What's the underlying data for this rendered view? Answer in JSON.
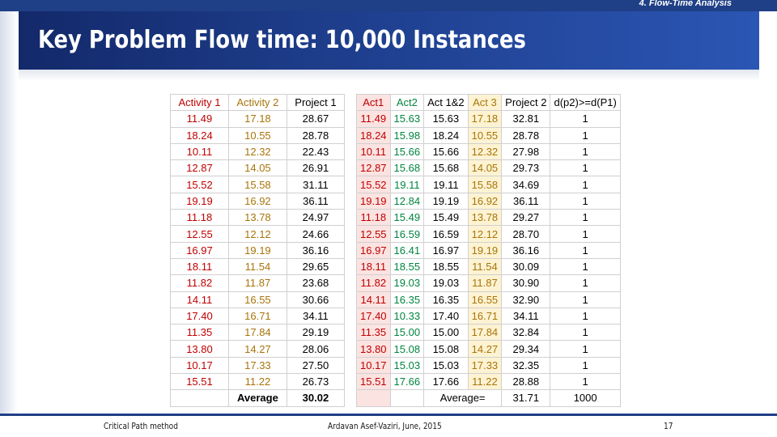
{
  "section_label": "4. Flow-Time Analysis",
  "title": "Key Problem Flow time: 10,000 Instances",
  "table1": {
    "headers": [
      "Activity 1",
      "Activity 2",
      "Project 1"
    ],
    "rows": [
      [
        "11.49",
        "17.18",
        "28.67"
      ],
      [
        "18.24",
        "10.55",
        "28.78"
      ],
      [
        "10.11",
        "12.32",
        "22.43"
      ],
      [
        "12.87",
        "14.05",
        "26.91"
      ],
      [
        "15.52",
        "15.58",
        "31.11"
      ],
      [
        "19.19",
        "16.92",
        "36.11"
      ],
      [
        "11.18",
        "13.78",
        "24.97"
      ],
      [
        "12.55",
        "12.12",
        "24.66"
      ],
      [
        "16.97",
        "19.19",
        "36.16"
      ],
      [
        "18.11",
        "11.54",
        "29.65"
      ],
      [
        "11.82",
        "11.87",
        "23.68"
      ],
      [
        "14.11",
        "16.55",
        "30.66"
      ],
      [
        "17.40",
        "16.71",
        "34.11"
      ],
      [
        "11.35",
        "17.84",
        "29.19"
      ],
      [
        "13.80",
        "14.27",
        "28.06"
      ],
      [
        "10.17",
        "17.33",
        "27.50"
      ],
      [
        "15.51",
        "11.22",
        "26.73"
      ]
    ],
    "average_label": "Average",
    "average_value": "30.02"
  },
  "table2": {
    "headers": [
      "Act1",
      "Act2",
      "Act 1&2",
      "Act 3",
      "Project 2",
      "d(p2)>=d(P1)"
    ],
    "rows": [
      [
        "11.49",
        "15.63",
        "15.63",
        "17.18",
        "32.81",
        "1"
      ],
      [
        "18.24",
        "15.98",
        "18.24",
        "10.55",
        "28.78",
        "1"
      ],
      [
        "10.11",
        "15.66",
        "15.66",
        "12.32",
        "27.98",
        "1"
      ],
      [
        "12.87",
        "15.68",
        "15.68",
        "14.05",
        "29.73",
        "1"
      ],
      [
        "15.52",
        "19.11",
        "19.11",
        "15.58",
        "34.69",
        "1"
      ],
      [
        "19.19",
        "12.84",
        "19.19",
        "16.92",
        "36.11",
        "1"
      ],
      [
        "11.18",
        "15.49",
        "15.49",
        "13.78",
        "29.27",
        "1"
      ],
      [
        "12.55",
        "16.59",
        "16.59",
        "12.12",
        "28.70",
        "1"
      ],
      [
        "16.97",
        "16.41",
        "16.97",
        "19.19",
        "36.16",
        "1"
      ],
      [
        "18.11",
        "18.55",
        "18.55",
        "11.54",
        "30.09",
        "1"
      ],
      [
        "11.82",
        "19.03",
        "19.03",
        "11.87",
        "30.90",
        "1"
      ],
      [
        "14.11",
        "16.35",
        "16.35",
        "16.55",
        "32.90",
        "1"
      ],
      [
        "17.40",
        "10.33",
        "17.40",
        "16.71",
        "34.11",
        "1"
      ],
      [
        "11.35",
        "15.00",
        "15.00",
        "17.84",
        "32.84",
        "1"
      ],
      [
        "13.80",
        "15.08",
        "15.08",
        "14.27",
        "29.34",
        "1"
      ],
      [
        "10.17",
        "15.03",
        "15.03",
        "17.33",
        "32.35",
        "1"
      ],
      [
        "15.51",
        "17.66",
        "17.66",
        "11.22",
        "28.88",
        "1"
      ]
    ],
    "average_label": "Average=",
    "average_value": "31.71",
    "count_value": "1000"
  },
  "footer": {
    "left": "Critical Path method",
    "center": "Ardavan Asef-Vaziri, June, 2015",
    "page": "17"
  },
  "colors": {
    "banner": "#1c3a86",
    "red_text": "#c00000",
    "green_text": "#00853f",
    "yellow_text": "#a8740a",
    "red_fill": "#fbe3e1",
    "yellow_fill": "#fdf3d2"
  }
}
